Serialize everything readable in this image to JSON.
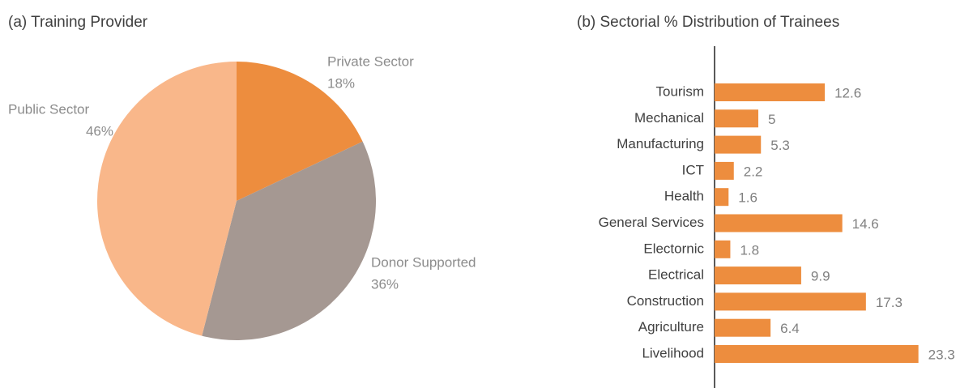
{
  "chart_data": [
    {
      "type": "pie",
      "title": "(a) Training Provider",
      "categories": [
        "Private Sector",
        "Donor Supported",
        "Public Sector"
      ],
      "values": [
        18,
        36,
        46
      ],
      "value_labels": [
        "18%",
        "36%",
        "46%"
      ],
      "colors": [
        "#ed8d3e",
        "#a59892",
        "#f9b78a"
      ]
    },
    {
      "type": "barh",
      "title": "(b) Sectorial % Distribution of Trainees",
      "categories": [
        "Tourism",
        "Mechanical",
        "Manufacturing",
        "ICT",
        "Health",
        "General Services",
        "Electornic",
        "Electrical",
        "Construction",
        "Agriculture",
        "Livelihood"
      ],
      "values": [
        12.6,
        5,
        5.3,
        2.2,
        1.6,
        14.6,
        1.8,
        9.9,
        17.3,
        6.4,
        23.3
      ],
      "color": "#ed8d3e",
      "xlim": [
        0,
        25
      ]
    }
  ]
}
